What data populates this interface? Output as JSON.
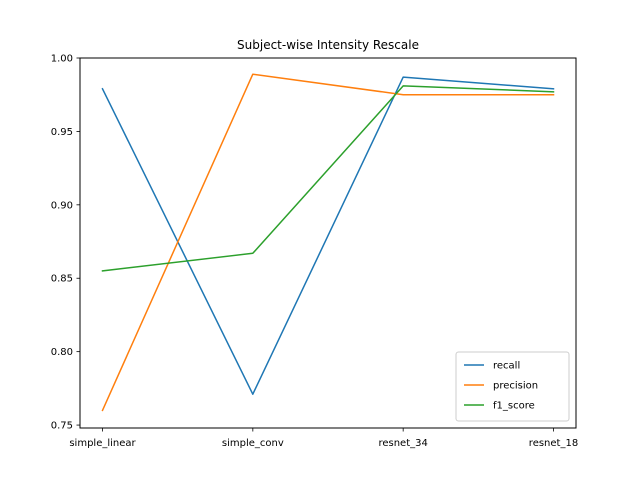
{
  "chart_data": {
    "type": "line",
    "title": "Subject-wise Intensity Rescale",
    "xlabel": "",
    "ylabel": "",
    "categories": [
      "simple_linear",
      "simple_conv",
      "resnet_34",
      "resnet_18"
    ],
    "ylim": [
      0.748,
      1.0
    ],
    "yticks": [
      "0.75",
      "0.80",
      "0.85",
      "0.90",
      "0.95",
      "1.00"
    ],
    "ytick_values": [
      0.75,
      0.8,
      0.85,
      0.9,
      0.95,
      1.0
    ],
    "grid": false,
    "legend_position": "lower-right",
    "series": [
      {
        "name": "recall",
        "color": "#1f77b4",
        "values": [
          0.979,
          0.771,
          0.987,
          0.979
        ]
      },
      {
        "name": "precision",
        "color": "#ff7f0e",
        "values": [
          0.76,
          0.989,
          0.975,
          0.975
        ]
      },
      {
        "name": "f1_score",
        "color": "#2ca02c",
        "values": [
          0.855,
          0.867,
          0.981,
          0.977
        ]
      }
    ]
  }
}
